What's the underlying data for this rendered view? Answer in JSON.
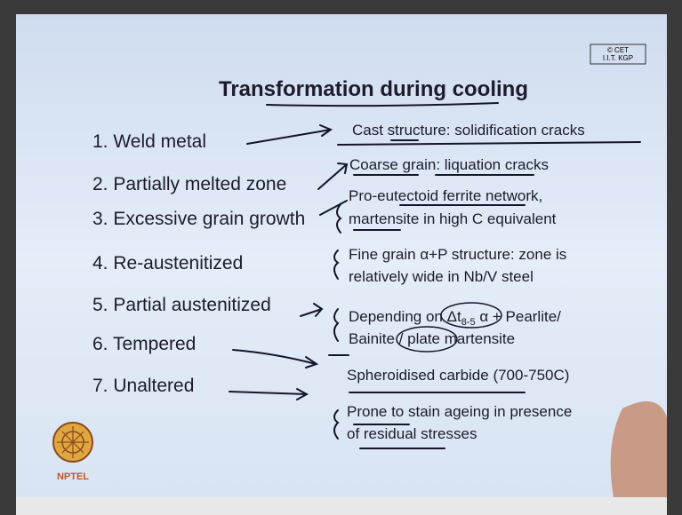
{
  "logo": {
    "line1": "© CET",
    "line2": "I.I.T. KGP"
  },
  "title": "Transformation during cooling",
  "items": [
    {
      "label": "1. Weld metal",
      "description": [
        [
          "Cast structure: solidification cracks"
        ]
      ]
    },
    {
      "label": "2. Partially melted zone",
      "description": [
        [
          "Coarse grain: liquation cracks"
        ]
      ]
    },
    {
      "label": "3. Excessive grain growth",
      "description": [
        [
          "Pro-eutectoid ferrite network,"
        ],
        [
          "martensite in high C equivalent"
        ]
      ]
    },
    {
      "label": "4. Re-austenitized",
      "description": [
        [
          "Fine grain α+P structure: zone is"
        ],
        [
          "relatively wide in Nb/V steel"
        ]
      ]
    },
    {
      "label": "5. Partial austenitized",
      "description": [
        [
          "Depending on ",
          "Δt",
          "8-5",
          " α + Pearlite/"
        ],
        [
          "Bainite / plate martensite"
        ]
      ]
    },
    {
      "label": "6. Tempered",
      "description": [
        [
          "Spheroidised carbide (700-750C)"
        ]
      ]
    },
    {
      "label": "7. Unaltered",
      "description": [
        [
          "Prone to stain ageing in presence"
        ],
        [
          "of residual stresses"
        ]
      ]
    }
  ],
  "footer": {
    "logo_text": "NPTEL"
  }
}
